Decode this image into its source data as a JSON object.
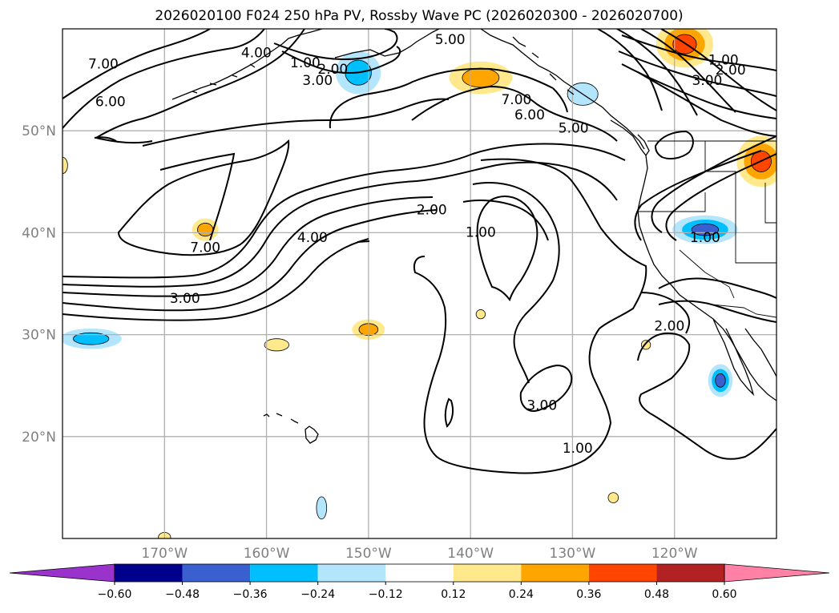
{
  "chart_data": {
    "type": "contour-map",
    "title": "2026020100 F024 250 hPa PV, Rossby Wave PC (2026020300 - 2026020700)",
    "map_extent": {
      "lon": [
        -180,
        -110
      ],
      "lat": [
        10,
        60
      ]
    },
    "x_ticks": [
      {
        "lon": -170,
        "label": "170°W"
      },
      {
        "lon": -160,
        "label": "160°W"
      },
      {
        "lon": -150,
        "label": "150°W"
      },
      {
        "lon": -140,
        "label": "140°W"
      },
      {
        "lon": -130,
        "label": "130°W"
      },
      {
        "lon": -120,
        "label": "120°W"
      }
    ],
    "y_ticks": [
      {
        "lat": 20,
        "label": "20°N"
      },
      {
        "lat": 30,
        "label": "30°N"
      },
      {
        "lat": 40,
        "label": "40°N"
      },
      {
        "lat": 50,
        "label": "50°N"
      }
    ],
    "grid": true,
    "contour_field": "250 hPa PV (PVU)",
    "contour_levels": [
      1,
      2,
      3,
      4,
      5,
      6,
      7
    ],
    "contour_labels": [
      {
        "text": "7.00",
        "lon": -176.0,
        "lat": 56.5
      },
      {
        "text": "6.00",
        "lon": -175.3,
        "lat": 52.8
      },
      {
        "text": "4.00",
        "lon": -161.0,
        "lat": 57.6
      },
      {
        "text": "1.00",
        "lon": -156.2,
        "lat": 56.6
      },
      {
        "text": "2.00",
        "lon": -153.5,
        "lat": 56.0
      },
      {
        "text": "3.00",
        "lon": -155.0,
        "lat": 54.9
      },
      {
        "text": "5.00",
        "lon": -142.0,
        "lat": 58.9
      },
      {
        "text": "7.00",
        "lon": -135.5,
        "lat": 53.0
      },
      {
        "text": "6.00",
        "lon": -134.2,
        "lat": 51.5
      },
      {
        "text": "5.00",
        "lon": -129.9,
        "lat": 50.2
      },
      {
        "text": "1.00",
        "lon": -115.2,
        "lat": 56.9
      },
      {
        "text": "2.00",
        "lon": -114.5,
        "lat": 55.9
      },
      {
        "text": "3.00",
        "lon": -116.8,
        "lat": 54.9
      },
      {
        "text": "2.00",
        "lon": -143.8,
        "lat": 42.2
      },
      {
        "text": "1.00",
        "lon": -139.0,
        "lat": 40.0
      },
      {
        "text": "4.00",
        "lon": -155.5,
        "lat": 39.5
      },
      {
        "text": "7.00",
        "lon": -166.0,
        "lat": 38.5
      },
      {
        "text": "3.00",
        "lon": -168.0,
        "lat": 33.5
      },
      {
        "text": "1.00",
        "lon": -117.0,
        "lat": 39.5
      },
      {
        "text": "2.00",
        "lon": -120.5,
        "lat": 30.8
      },
      {
        "text": "3.00",
        "lon": -133.0,
        "lat": 23.0
      },
      {
        "text": "1.00",
        "lon": -129.5,
        "lat": 18.8
      }
    ],
    "shading_field": "Rossby Wave PC",
    "shaded_regions": [
      {
        "sign": "negative",
        "value": -0.3,
        "lon": -151.0,
        "lat": 55.7,
        "rx_deg": 2.2,
        "ry_deg": 2.1
      },
      {
        "sign": "negative",
        "value": -0.2,
        "lon": -129.0,
        "lat": 53.6,
        "rx_deg": 1.5,
        "ry_deg": 1.1
      },
      {
        "sign": "negative",
        "value": -0.38,
        "lon": -117.0,
        "lat": 40.3,
        "rx_deg": 3.2,
        "ry_deg": 1.4
      },
      {
        "sign": "negative",
        "value": -0.45,
        "lon": -115.5,
        "lat": 25.5,
        "rx_deg": 1.2,
        "ry_deg": 1.6
      },
      {
        "sign": "negative",
        "value": -0.3,
        "lon": -177.2,
        "lat": 29.6,
        "rx_deg": 3.0,
        "ry_deg": 1.0
      },
      {
        "sign": "negative",
        "value": -0.2,
        "lon": -154.6,
        "lat": 13.0,
        "rx_deg": 0.5,
        "ry_deg": 1.1
      },
      {
        "sign": "positive",
        "value": 0.3,
        "lon": -139.0,
        "lat": 55.2,
        "rx_deg": 3.1,
        "ry_deg": 1.6
      },
      {
        "sign": "positive",
        "value": 0.42,
        "lon": -119.0,
        "lat": 58.5,
        "rx_deg": 2.8,
        "ry_deg": 2.3
      },
      {
        "sign": "positive",
        "value": 0.45,
        "lon": -111.5,
        "lat": 47.0,
        "rx_deg": 2.4,
        "ry_deg": 2.5
      },
      {
        "sign": "positive",
        "value": 0.28,
        "lon": -166.0,
        "lat": 40.3,
        "rx_deg": 1.3,
        "ry_deg": 1.1
      },
      {
        "sign": "positive",
        "value": 0.26,
        "lon": -150.0,
        "lat": 30.5,
        "rx_deg": 1.6,
        "ry_deg": 1.0
      },
      {
        "sign": "positive",
        "value": 0.22,
        "lon": -159.0,
        "lat": 29.0,
        "rx_deg": 1.2,
        "ry_deg": 0.6
      },
      {
        "sign": "positive",
        "value": 0.15,
        "lon": -180.0,
        "lat": 46.6,
        "rx_deg": 0.5,
        "ry_deg": 0.8
      },
      {
        "sign": "positive",
        "value": 0.14,
        "lon": -126.0,
        "lat": 14.0,
        "rx_deg": 0.5,
        "ry_deg": 0.5
      },
      {
        "sign": "positive",
        "value": 0.14,
        "lon": -122.8,
        "lat": 29.0,
        "rx_deg": 0.45,
        "ry_deg": 0.45
      },
      {
        "sign": "positive",
        "value": 0.13,
        "lon": -139.0,
        "lat": 32.0,
        "rx_deg": 0.45,
        "ry_deg": 0.45
      },
      {
        "sign": "positive",
        "value": 0.13,
        "lon": -170.0,
        "lat": 10.1,
        "rx_deg": 0.6,
        "ry_deg": 0.5
      }
    ],
    "colorbar": {
      "orientation": "horizontal",
      "extend": "both",
      "levels": [
        -0.6,
        -0.48,
        -0.36,
        -0.24,
        -0.12,
        0.12,
        0.24,
        0.36,
        0.48,
        0.6
      ],
      "tick_labels": [
        "−0.60",
        "−0.48",
        "−0.36",
        "−0.24",
        "−0.12",
        "0.12",
        "0.24",
        "0.36",
        "0.48",
        "0.60"
      ],
      "colors": [
        "#9933cc",
        "#00008b",
        "#3a60cf",
        "#00bfff",
        "#b3e5fc",
        "#ffffff",
        "#ffe98c",
        "#ffa500",
        "#ff4500",
        "#b22222",
        "#ff82a6"
      ]
    }
  }
}
